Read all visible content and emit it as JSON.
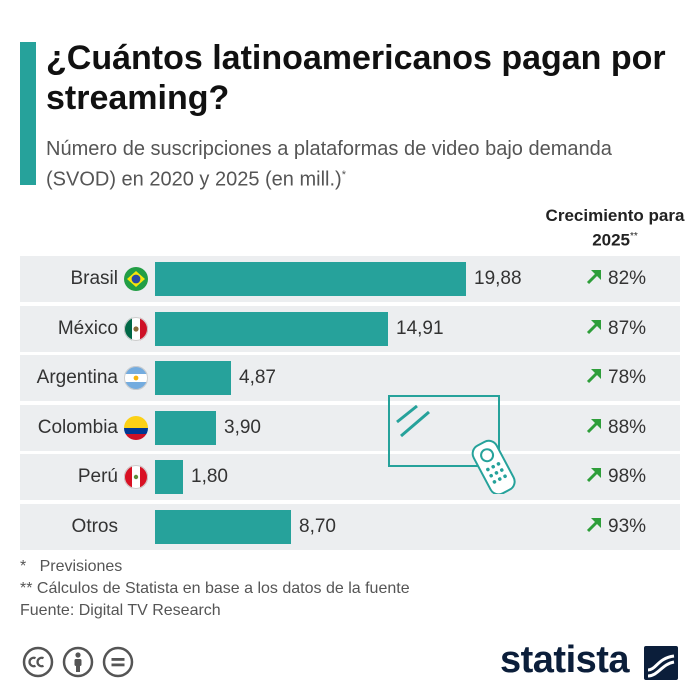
{
  "header": {
    "title": "¿Cuántos latinoamericanos pagan por streaming?",
    "subtitle": "Número de suscripciones a plataformas de video bajo demanda (SVOD) en 2020 y 2025 (en mill.)",
    "subtitle_mark": "*"
  },
  "growth_header": {
    "label": "Crecimiento para 2025",
    "mark": "**"
  },
  "chart_data": {
    "type": "bar",
    "orientation": "horizontal",
    "categories": [
      "Brasil",
      "México",
      "Argentina",
      "Colombia",
      "Perú",
      "Otros"
    ],
    "values": [
      19.88,
      14.91,
      4.87,
      3.9,
      1.8,
      8.7
    ],
    "value_labels": [
      "19,88",
      "14,91",
      "4,87",
      "3,90",
      "1,80",
      "8,70"
    ],
    "growth_labels": [
      "82%",
      "87%",
      "78%",
      "88%",
      "98%",
      "93%"
    ],
    "title": "¿Cuántos latinoamericanos pagan por streaming?",
    "xlabel": "",
    "ylabel": "",
    "grid": false,
    "legend": "none",
    "bar_color": "#26a29b",
    "growth_arrow_color": "#2e9e3a"
  },
  "icons": {
    "flags": [
      "brazil-flag-icon",
      "mexico-flag-icon",
      "argentina-flag-icon",
      "colombia-flag-icon",
      "peru-flag-icon"
    ],
    "growth": "arrow-up-right-icon",
    "illustration": "tv-remote-icon"
  },
  "footnotes": {
    "forecast": "*   Previsiones",
    "calc": "** Cálculos de Statista en base a los datos de la fuente",
    "source": "Fuente: Digital TV Research"
  },
  "footer": {
    "brand": "statista",
    "license_icons": [
      "creative-commons-icon",
      "attribution-icon",
      "no-derivatives-icon"
    ]
  },
  "colors": {
    "accent": "#26a29b",
    "row_background": "#eceef0",
    "brand": "#0b1e3a"
  }
}
